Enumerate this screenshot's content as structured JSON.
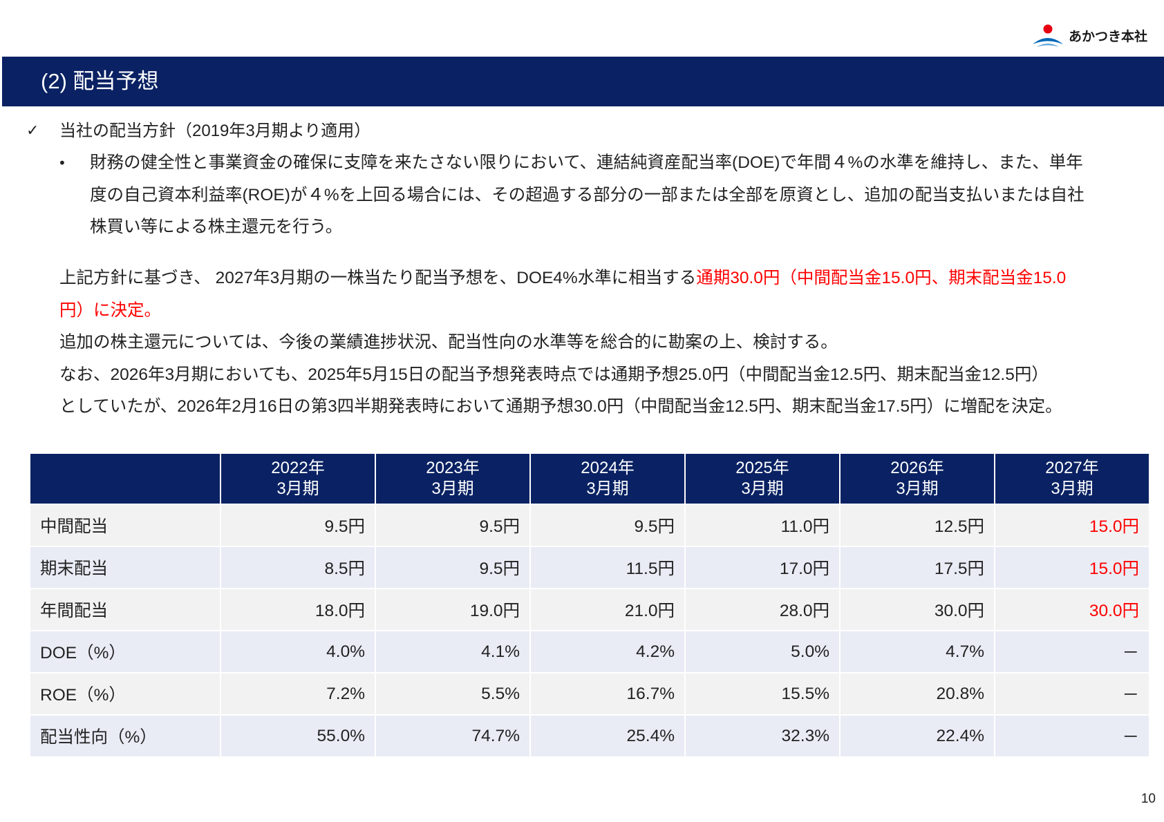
{
  "logo": {
    "icon": "akatsuki-logo-icon",
    "text": "あかつき本社",
    "colors": {
      "dot": "#e60012",
      "wave": "#0068b7",
      "wave_light": "#5fa8dc"
    }
  },
  "header": {
    "title": "(2) 配当予想"
  },
  "policy": {
    "check_icon": "check-icon",
    "check_glyph": "✓",
    "heading": "当社の配当方針（2019年3月期より適用）",
    "bullet_icon": "bullet-icon",
    "bullet_glyph": "•",
    "bullet_lines": [
      "財務の健全性と事業資金の確保に支障を来たさない限りにおいて、連結純資産配当率(DOE)で年間４%の水準を維持し、また、単年",
      "度の自己資本利益率(ROE)が４%を上回る場合には、その超過する部分の一部または全部を原資とし、追加の配当支払いまたは自社",
      "株買い等による株主還元を行う。"
    ]
  },
  "decision": {
    "line1_text": "上記方針に基づき、 2027年3月期の一株当たり配当予想を、DOE4%水準に相当する",
    "line1_highlight": "通期30.0円（中間配当金15.0円、期末配当金15.0",
    "line2_highlight": "円）に決定。",
    "highlight_color": "#ff0000"
  },
  "notes": [
    "追加の株主還元については、今後の業績進捗状況、配当性向の水準等を総合的に勘案の上、検討する。",
    "なお、2026年3月期においても、2025年5月15日の配当予想発表時点では通期予想25.0円（中間配当金12.5円、期末配当金12.5円）",
    "としていたが、2026年2月16日の第3四半期発表時において通期予想30.0円（中間配当金12.5円、期末配当金17.5円）に増配を決定。"
  ],
  "table": {
    "highlight_color": "#ff0000",
    "columns": [
      {
        "year": "2022年",
        "period": "3月期"
      },
      {
        "year": "2023年",
        "period": "3月期"
      },
      {
        "year": "2024年",
        "period": "3月期"
      },
      {
        "year": "2025年",
        "period": "3月期"
      },
      {
        "year": "2026年",
        "period": "3月期"
      },
      {
        "year": "2027年",
        "period": "3月期"
      }
    ],
    "rows": [
      {
        "label": "中間配当",
        "values": [
          "9.5円",
          "9.5円",
          "9.5円",
          "11.0円",
          "12.5円",
          "15.0円"
        ],
        "highlight_last": true
      },
      {
        "label": "期末配当",
        "values": [
          "8.5円",
          "9.5円",
          "11.5円",
          "17.0円",
          "17.5円",
          "15.0円"
        ],
        "highlight_last": true
      },
      {
        "label": "年間配当",
        "values": [
          "18.0円",
          "19.0円",
          "21.0円",
          "28.0円",
          "30.0円",
          "30.0円"
        ],
        "highlight_last": true
      },
      {
        "label": "DOE（%）",
        "values": [
          "4.0%",
          "4.1%",
          "4.2%",
          "5.0%",
          "4.7%",
          "－"
        ],
        "highlight_last": false
      },
      {
        "label": "ROE（%）",
        "values": [
          "7.2%",
          "5.5%",
          "16.7%",
          "15.5%",
          "20.8%",
          "－"
        ],
        "highlight_last": false
      },
      {
        "label": "配当性向（%）",
        "values": [
          "55.0%",
          "74.7%",
          "25.4%",
          "32.3%",
          "22.4%",
          "－"
        ],
        "highlight_last": false
      }
    ]
  },
  "page_number": "10",
  "colors": {
    "header_bg": "#0a2263",
    "row_a": "#f2f2f2",
    "row_b": "#e9ecf5",
    "text": "#222222"
  }
}
